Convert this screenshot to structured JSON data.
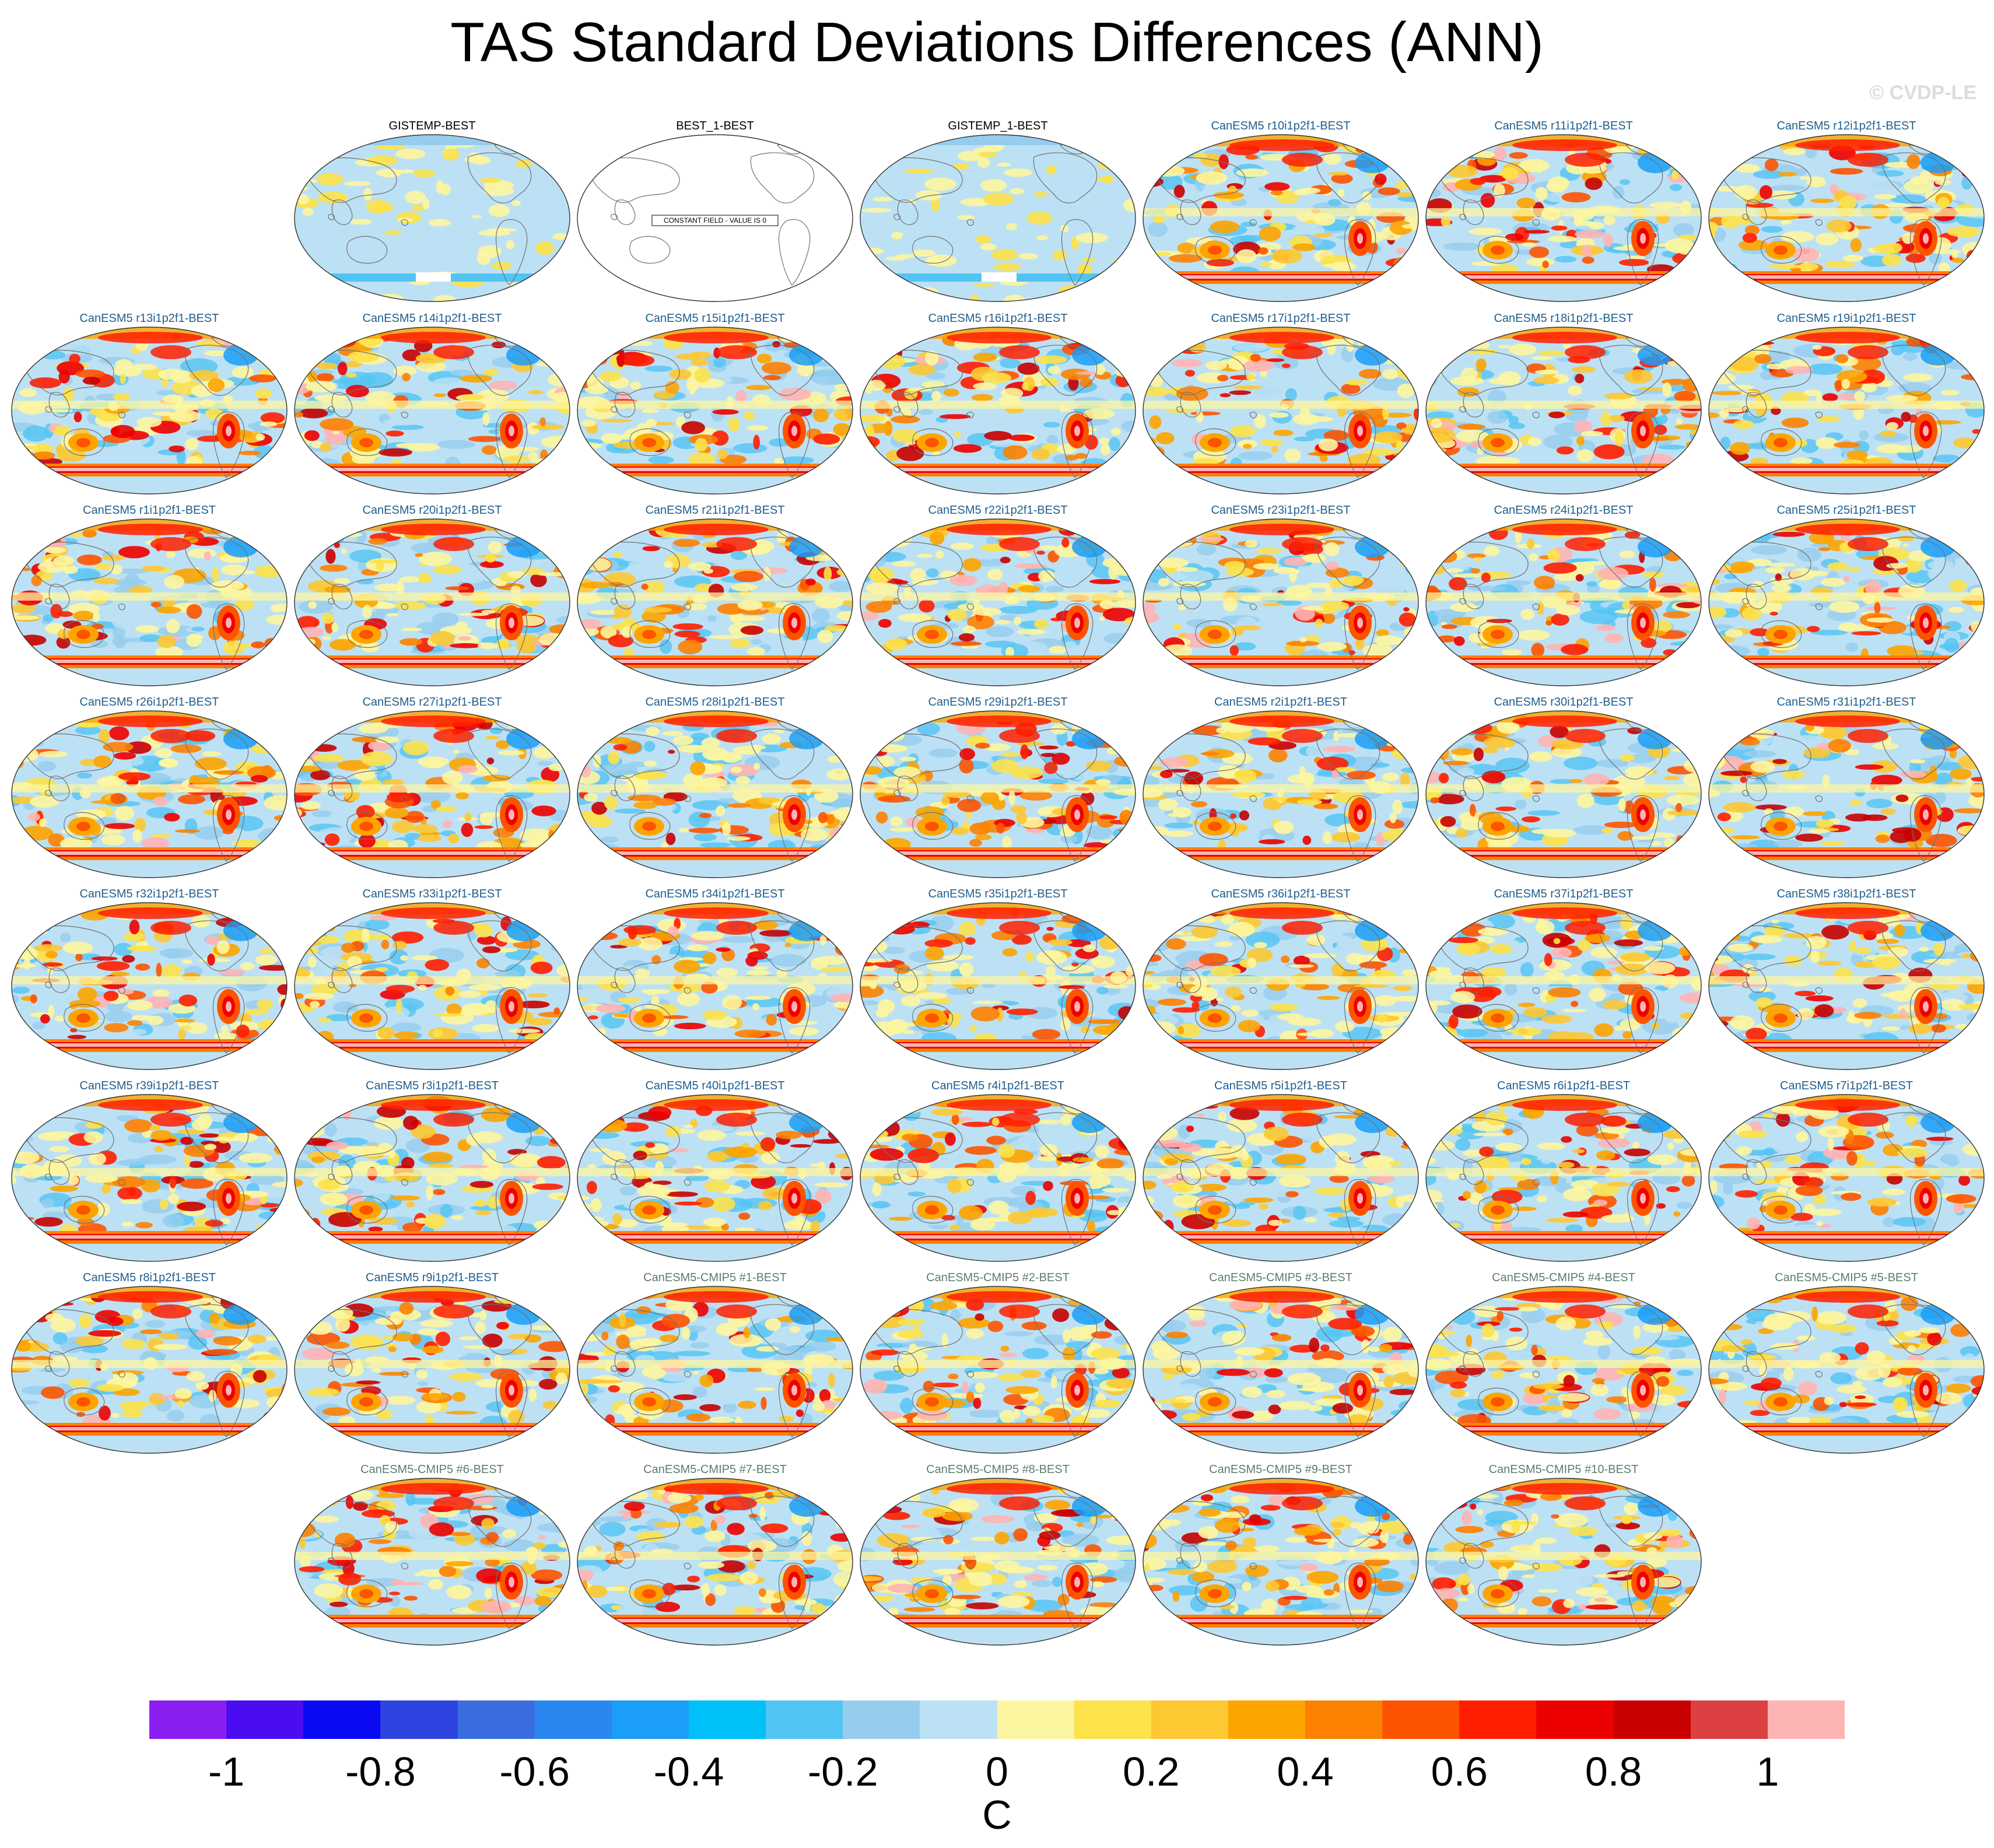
{
  "title": "TAS Standard Deviations Differences (ANN)",
  "credit": "© CVDP-LE",
  "constant_field_text": "CONSTANT FIELD - VALUE IS 0",
  "panels": [
    {
      "label": "GISTEMP-BEST",
      "group": "obs",
      "style": "obs"
    },
    {
      "label": "BEST_1-BEST",
      "group": "obs",
      "style": "constant"
    },
    {
      "label": "GISTEMP_1-BEST",
      "group": "obs",
      "style": "obs"
    },
    {
      "label": "CanESM5 r10i1p2f1-BEST",
      "group": "model",
      "style": "model"
    },
    {
      "label": "CanESM5 r11i1p2f1-BEST",
      "group": "model",
      "style": "model"
    },
    {
      "label": "CanESM5 r12i1p2f1-BEST",
      "group": "model",
      "style": "model"
    },
    {
      "label": "CanESM5 r13i1p2f1-BEST",
      "group": "model",
      "style": "model"
    },
    {
      "label": "CanESM5 r14i1p2f1-BEST",
      "group": "model",
      "style": "model"
    },
    {
      "label": "CanESM5 r15i1p2f1-BEST",
      "group": "model",
      "style": "model"
    },
    {
      "label": "CanESM5 r16i1p2f1-BEST",
      "group": "model",
      "style": "model"
    },
    {
      "label": "CanESM5 r17i1p2f1-BEST",
      "group": "model",
      "style": "model"
    },
    {
      "label": "CanESM5 r18i1p2f1-BEST",
      "group": "model",
      "style": "model"
    },
    {
      "label": "CanESM5 r19i1p2f1-BEST",
      "group": "model",
      "style": "model"
    },
    {
      "label": "CanESM5 r1i1p2f1-BEST",
      "group": "model",
      "style": "model"
    },
    {
      "label": "CanESM5 r20i1p2f1-BEST",
      "group": "model",
      "style": "model"
    },
    {
      "label": "CanESM5 r21i1p2f1-BEST",
      "group": "model",
      "style": "model"
    },
    {
      "label": "CanESM5 r22i1p2f1-BEST",
      "group": "model",
      "style": "model"
    },
    {
      "label": "CanESM5 r23i1p2f1-BEST",
      "group": "model",
      "style": "model"
    },
    {
      "label": "CanESM5 r24i1p2f1-BEST",
      "group": "model",
      "style": "model"
    },
    {
      "label": "CanESM5 r25i1p2f1-BEST",
      "group": "model",
      "style": "model"
    },
    {
      "label": "CanESM5 r26i1p2f1-BEST",
      "group": "model",
      "style": "model"
    },
    {
      "label": "CanESM5 r27i1p2f1-BEST",
      "group": "model",
      "style": "model"
    },
    {
      "label": "CanESM5 r28i1p2f1-BEST",
      "group": "model",
      "style": "model"
    },
    {
      "label": "CanESM5 r29i1p2f1-BEST",
      "group": "model",
      "style": "model"
    },
    {
      "label": "CanESM5 r2i1p2f1-BEST",
      "group": "model",
      "style": "model"
    },
    {
      "label": "CanESM5 r30i1p2f1-BEST",
      "group": "model",
      "style": "model"
    },
    {
      "label": "CanESM5 r31i1p2f1-BEST",
      "group": "model",
      "style": "model"
    },
    {
      "label": "CanESM5 r32i1p2f1-BEST",
      "group": "model",
      "style": "model"
    },
    {
      "label": "CanESM5 r33i1p2f1-BEST",
      "group": "model",
      "style": "model"
    },
    {
      "label": "CanESM5 r34i1p2f1-BEST",
      "group": "model",
      "style": "model"
    },
    {
      "label": "CanESM5 r35i1p2f1-BEST",
      "group": "model",
      "style": "model"
    },
    {
      "label": "CanESM5 r36i1p2f1-BEST",
      "group": "model",
      "style": "model"
    },
    {
      "label": "CanESM5 r37i1p2f1-BEST",
      "group": "model",
      "style": "model"
    },
    {
      "label": "CanESM5 r38i1p2f1-BEST",
      "group": "model",
      "style": "model"
    },
    {
      "label": "CanESM5 r39i1p2f1-BEST",
      "group": "model",
      "style": "model"
    },
    {
      "label": "CanESM5 r3i1p2f1-BEST",
      "group": "model",
      "style": "model"
    },
    {
      "label": "CanESM5 r40i1p2f1-BEST",
      "group": "model",
      "style": "model"
    },
    {
      "label": "CanESM5 r4i1p2f1-BEST",
      "group": "model",
      "style": "model"
    },
    {
      "label": "CanESM5 r5i1p2f1-BEST",
      "group": "model",
      "style": "model"
    },
    {
      "label": "CanESM5 r6i1p2f1-BEST",
      "group": "model",
      "style": "model"
    },
    {
      "label": "CanESM5 r7i1p2f1-BEST",
      "group": "model",
      "style": "model"
    },
    {
      "label": "CanESM5 r8i1p2f1-BEST",
      "group": "model",
      "style": "model"
    },
    {
      "label": "CanESM5 r9i1p2f1-BEST",
      "group": "model",
      "style": "model"
    },
    {
      "label": "CanESM5-CMIP5 #1-BEST",
      "group": "cmip5",
      "style": "model"
    },
    {
      "label": "CanESM5-CMIP5 #2-BEST",
      "group": "cmip5",
      "style": "model"
    },
    {
      "label": "CanESM5-CMIP5 #3-BEST",
      "group": "cmip5",
      "style": "model"
    },
    {
      "label": "CanESM5-CMIP5 #4-BEST",
      "group": "cmip5",
      "style": "model"
    },
    {
      "label": "CanESM5-CMIP5 #5-BEST",
      "group": "cmip5",
      "style": "model"
    },
    {
      "label": "CanESM5-CMIP5 #6-BEST",
      "group": "cmip5",
      "style": "model"
    },
    {
      "label": "CanESM5-CMIP5 #7-BEST",
      "group": "cmip5",
      "style": "model"
    },
    {
      "label": "CanESM5-CMIP5 #8-BEST",
      "group": "cmip5",
      "style": "model"
    },
    {
      "label": "CanESM5-CMIP5 #9-BEST",
      "group": "cmip5",
      "style": "model"
    },
    {
      "label": "CanESM5-CMIP5 #10-BEST",
      "group": "cmip5",
      "style": "model"
    }
  ],
  "colorbar": {
    "unit": "C",
    "min": -1.1,
    "max": 1.1,
    "step": 0.1,
    "colors": [
      "#8a1ef0",
      "#4a0cf0",
      "#0a0af5",
      "#2e44e0",
      "#3a6ee0",
      "#2a86f0",
      "#1a9ef8",
      "#00c0f8",
      "#52c4f4",
      "#96cdee",
      "#bde1f4",
      "#fdf6a0",
      "#fde24a",
      "#fdc831",
      "#fda400",
      "#fd8100",
      "#fd5400",
      "#ff1e00",
      "#ed0000",
      "#c80000",
      "#dc4040",
      "#ffb4b4"
    ],
    "tick_values": [
      -1,
      -0.8,
      -0.6,
      -0.4,
      -0.2,
      0,
      0.2,
      0.4,
      0.6,
      0.8,
      1
    ],
    "tick_labels": [
      "-1",
      "-0.8",
      "-0.6",
      "-0.4",
      "-0.2",
      "0",
      "0.2",
      "0.4",
      "0.6",
      "0.8",
      "1"
    ]
  }
}
